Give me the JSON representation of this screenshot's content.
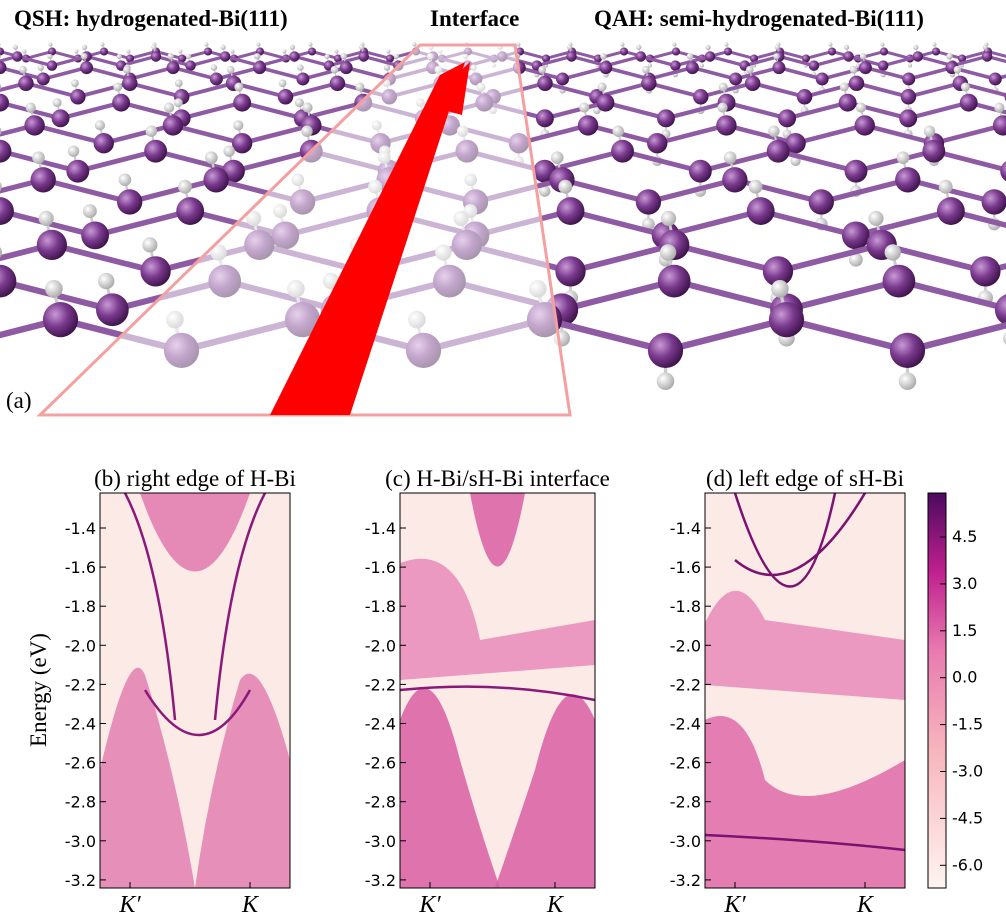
{
  "panel_a": {
    "label": "(a)",
    "titles": [
      "QSH: hydrogenated-Bi(111)",
      "Interface",
      "QAH: semi-hydrogenated-Bi(111)"
    ]
  },
  "y_axis_label": "Energy (eV)",
  "yticks": [
    "-1.4",
    "-1.6",
    "-1.8",
    "-2.0",
    "-2.2",
    "-2.4",
    "-2.6",
    "-2.8",
    "-3.0",
    "-3.2"
  ],
  "panels": [
    {
      "title": "(b) right edge of H-Bi",
      "xticks": [
        "K′",
        "K"
      ]
    },
    {
      "title": "(c) H-Bi/sH-Bi interface",
      "xticks": [
        "K′",
        "K"
      ]
    },
    {
      "title": "(d) left edge of sH-Bi",
      "xticks": [
        "K′",
        "K"
      ]
    }
  ],
  "colorbar_ticks": [
    "4.5",
    "3.0",
    "1.5",
    "0.0",
    "-1.5",
    "-3.0",
    "-4.5",
    "-6.0"
  ]
}
